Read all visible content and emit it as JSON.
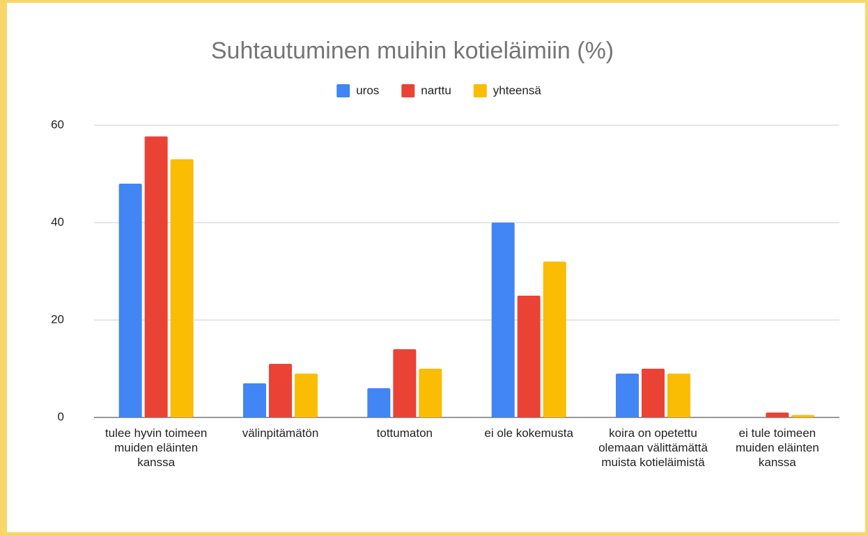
{
  "chart_data": {
    "type": "bar",
    "title": "Suhtautuminen muihin kotieläimiin (%)",
    "categories": [
      "tulee hyvin toimeen muiden eläinten kanssa",
      "välinpitämätön",
      "tottumaton",
      "ei ole kokemusta",
      "koira on opetettu olemaan välittämättä muista kotieläimistä",
      "ei tule toimeen muiden eläinten kanssa"
    ],
    "series": [
      {
        "name": "uros",
        "color": "#4285f4",
        "values": [
          48,
          7,
          6,
          40,
          9,
          0
        ]
      },
      {
        "name": "narttu",
        "color": "#ea4335",
        "values": [
          57.7,
          11,
          14,
          25,
          10,
          1
        ]
      },
      {
        "name": "yhteensä",
        "color": "#fbbc04",
        "values": [
          53,
          9,
          10,
          32,
          9,
          0.5
        ]
      }
    ],
    "ylim": [
      0,
      60
    ],
    "yticks": [
      0,
      20,
      40,
      60
    ],
    "grid": true,
    "legend": "top"
  }
}
